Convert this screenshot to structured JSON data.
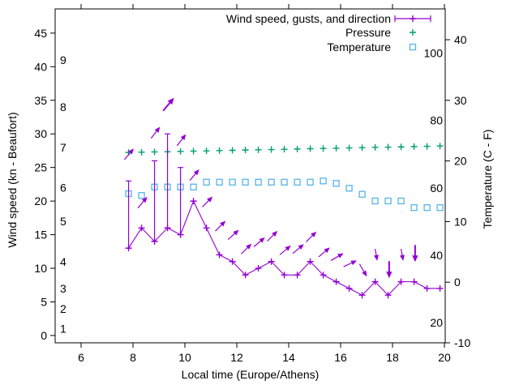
{
  "chart_data": {
    "type": "line",
    "xlabel": "Local time (Europe/Athens)",
    "ylabel_left": "Wind speed (kn - Beaufort)",
    "ylabel_right": "Temperature (C - F)",
    "grid": false,
    "legend_position": "top-right-inside",
    "colors": {
      "wind": "#9400D3",
      "pressure": "#009E73",
      "temperature": "#56B4E9",
      "axis": "#000000",
      "background": "#FFFFFF"
    },
    "x": [
      7.83,
      8.33,
      8.83,
      9.33,
      9.83,
      10.33,
      10.83,
      11.33,
      11.83,
      12.33,
      12.83,
      13.33,
      13.83,
      14.33,
      14.83,
      15.33,
      15.83,
      16.33,
      16.83,
      17.33,
      17.83,
      18.33,
      18.83,
      19.33,
      19.83
    ],
    "series": [
      {
        "name": "Wind speed, gusts, and direction",
        "axis": "kn",
        "color": "#9400D3",
        "marker": "plus",
        "legend_sample": "errorbar",
        "values": [
          13,
          16,
          14,
          16,
          15,
          20,
          16,
          12,
          11,
          9,
          10,
          11,
          9,
          9,
          11,
          9,
          8,
          7,
          6,
          8,
          6,
          8,
          8,
          7,
          7
        ],
        "gusts": [
          23,
          null,
          26,
          30,
          25,
          null,
          null,
          null,
          null,
          null,
          null,
          null,
          null,
          null,
          null,
          null,
          null,
          null,
          null,
          null,
          null,
          null,
          null,
          null,
          null
        ]
      },
      {
        "name": "Pressure",
        "axis": "celsius",
        "color": "#009E73",
        "marker": "plus",
        "legend_sample": "plus",
        "values": [
          21.4,
          21.44,
          21.49,
          21.53,
          21.58,
          21.62,
          21.66,
          21.71,
          21.75,
          21.8,
          21.84,
          21.88,
          21.93,
          21.97,
          22.02,
          22.06,
          22.1,
          22.15,
          22.19,
          22.24,
          22.28,
          22.32,
          22.37,
          22.41,
          22.46
        ]
      },
      {
        "name": "Temperature",
        "axis": "celsius",
        "color": "#56B4E9",
        "marker": "square",
        "legend_sample": "square",
        "values": [
          14.6,
          14.3,
          15.7,
          15.7,
          15.7,
          15.7,
          16.5,
          16.5,
          16.5,
          16.5,
          16.5,
          16.5,
          16.5,
          16.5,
          16.5,
          16.7,
          16.3,
          15.5,
          14.5,
          13.4,
          13.4,
          13.4,
          12.3,
          12.3,
          12.3
        ]
      }
    ],
    "wind_direction_arrows": [
      {
        "t": 7.85,
        "kn": 27.0,
        "angle": 50,
        "size": "normal"
      },
      {
        "t": 8.37,
        "kn": 19.8,
        "angle": 50,
        "size": "normal"
      },
      {
        "t": 8.87,
        "kn": 30.2,
        "angle": 52,
        "size": "normal"
      },
      {
        "t": 9.37,
        "kn": 34.4,
        "angle": 50,
        "size": "large"
      },
      {
        "t": 9.87,
        "kn": 29.1,
        "angle": 52,
        "size": "normal"
      },
      {
        "t": 10.37,
        "kn": 23.9,
        "angle": 50,
        "size": "normal"
      },
      {
        "t": 10.87,
        "kn": 19.9,
        "angle": 46,
        "size": "normal"
      },
      {
        "t": 11.37,
        "kn": 16.3,
        "angle": 45,
        "size": "normal"
      },
      {
        "t": 11.87,
        "kn": 15.0,
        "angle": 42,
        "size": "normal"
      },
      {
        "t": 12.37,
        "kn": 12.9,
        "angle": 45,
        "size": "normal"
      },
      {
        "t": 12.87,
        "kn": 13.9,
        "angle": 40,
        "size": "normal"
      },
      {
        "t": 13.37,
        "kn": 14.8,
        "angle": 45,
        "size": "normal"
      },
      {
        "t": 13.87,
        "kn": 12.7,
        "angle": 40,
        "size": "normal"
      },
      {
        "t": 14.37,
        "kn": 12.9,
        "angle": 40,
        "size": "normal"
      },
      {
        "t": 14.87,
        "kn": 14.7,
        "angle": 45,
        "size": "normal"
      },
      {
        "t": 15.37,
        "kn": 12.4,
        "angle": 40,
        "size": "normal"
      },
      {
        "t": 15.87,
        "kn": 11.7,
        "angle": 30,
        "size": "normal"
      },
      {
        "t": 16.37,
        "kn": 10.7,
        "angle": 25,
        "size": "normal"
      },
      {
        "t": 16.87,
        "kn": 9.7,
        "angle": -60,
        "size": "normal"
      },
      {
        "t": 17.37,
        "kn": 12.0,
        "angle": -80,
        "size": "small"
      },
      {
        "t": 17.87,
        "kn": 9.8,
        "angle": -90,
        "size": "large"
      },
      {
        "t": 18.37,
        "kn": 12.0,
        "angle": -80,
        "size": "small"
      },
      {
        "t": 18.87,
        "kn": 12.2,
        "angle": -90,
        "size": "large"
      }
    ],
    "axes": {
      "x": {
        "range": [
          5,
          20.03
        ],
        "ticks": [
          6,
          8,
          10,
          12,
          14,
          16,
          18,
          20
        ]
      },
      "y_left": {
        "range": [
          -1.09,
          48.6
        ],
        "ticks": [
          0,
          5,
          10,
          15,
          20,
          25,
          30,
          35,
          40,
          45
        ]
      },
      "beaufort_labels": [
        {
          "b": "1",
          "kn": 1
        },
        {
          "b": "2",
          "kn": 4
        },
        {
          "b": "3",
          "kn": 7
        },
        {
          "b": "4",
          "kn": 11
        },
        {
          "b": "5",
          "kn": 17
        },
        {
          "b": "6",
          "kn": 22
        },
        {
          "b": "7",
          "kn": 28
        },
        {
          "b": "8",
          "kn": 34
        },
        {
          "b": "9",
          "kn": 41
        }
      ],
      "y_right": {
        "range": [
          -10,
          45.08
        ],
        "ticks": [
          -10,
          0,
          10,
          20,
          30,
          40
        ]
      },
      "fahrenheit_labels": [
        20,
        40,
        60,
        80,
        100
      ]
    }
  }
}
